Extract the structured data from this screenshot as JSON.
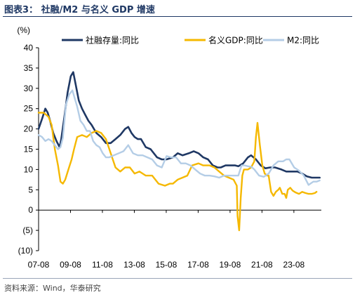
{
  "title": "图表3：  社融/M2 与名义 GDP 增速",
  "source": "资料来源：Wind，华泰研究",
  "chart_data": {
    "type": "line",
    "ylabel": "(%)",
    "ylim": [
      -10,
      40
    ],
    "yticks": [
      40,
      35,
      30,
      25,
      20,
      15,
      10,
      5,
      0,
      -5,
      -10
    ],
    "ytick_labels": [
      "40",
      "35",
      "30",
      "25",
      "20",
      "15",
      "10",
      "5",
      "0",
      "(5)",
      "(10)"
    ],
    "xlim": [
      2007.58,
      2025.3
    ],
    "xticks": [
      2007.58,
      2009.58,
      2011.58,
      2013.58,
      2015.58,
      2017.58,
      2019.58,
      2021.58,
      2023.58
    ],
    "xtick_labels": [
      "07-08",
      "09-08",
      "11-08",
      "13-08",
      "15-08",
      "17-08",
      "19-08",
      "21-08",
      "23-08"
    ],
    "legend_position": "top",
    "grid": false,
    "series": [
      {
        "name": "社融存量:同比",
        "color": "#1f3864",
        "x": [
          2007.58,
          2007.8,
          2008.0,
          2008.15,
          2008.3,
          2008.5,
          2008.7,
          2008.9,
          2009.0,
          2009.2,
          2009.4,
          2009.6,
          2009.75,
          2009.9,
          2010.1,
          2010.3,
          2010.5,
          2010.7,
          2010.9,
          2011.2,
          2011.5,
          2011.8,
          2012.1,
          2012.4,
          2012.7,
          2013.0,
          2013.2,
          2013.4,
          2013.6,
          2013.8,
          2014.0,
          2014.3,
          2014.6,
          2015.0,
          2015.3,
          2015.6,
          2016.0,
          2016.3,
          2016.6,
          2017.0,
          2017.3,
          2017.6,
          2017.9,
          2018.2,
          2018.5,
          2018.8,
          2019.0,
          2019.3,
          2019.6,
          2019.9,
          2020.1,
          2020.4,
          2020.7,
          2020.9,
          2021.2,
          2021.5,
          2021.8,
          2022.1,
          2022.4,
          2022.8,
          2023.1,
          2023.4,
          2023.8,
          2024.1,
          2024.4,
          2024.7,
          2025.0,
          2025.2
        ],
        "values": [
          20.0,
          22.5,
          25.0,
          24.0,
          22.0,
          19.0,
          17.0,
          15.5,
          17.5,
          23.0,
          29.0,
          33.0,
          34.0,
          31.0,
          27.0,
          25.0,
          23.5,
          22.0,
          21.0,
          19.0,
          18.0,
          16.5,
          16.5,
          17.5,
          18.5,
          20.0,
          20.5,
          19.0,
          18.0,
          17.5,
          17.5,
          15.5,
          15.0,
          13.0,
          12.5,
          12.5,
          13.0,
          14.0,
          13.5,
          14.0,
          14.5,
          14.0,
          13.0,
          12.5,
          11.0,
          10.5,
          10.5,
          11.0,
          11.0,
          11.0,
          10.8,
          11.5,
          13.0,
          13.5,
          12.5,
          11.0,
          10.3,
          10.5,
          10.5,
          10.0,
          9.5,
          9.5,
          9.5,
          9.0,
          8.3,
          8.0,
          8.0,
          8.0
        ]
      },
      {
        "name": "名义GDP:同比",
        "color": "#f5b800",
        "x": [
          2007.58,
          2007.9,
          2008.2,
          2008.4,
          2008.6,
          2008.8,
          2008.95,
          2009.1,
          2009.25,
          2009.45,
          2009.65,
          2009.8,
          2010.0,
          2010.3,
          2010.6,
          2010.9,
          2011.2,
          2011.5,
          2011.8,
          2012.1,
          2012.4,
          2012.7,
          2013.0,
          2013.3,
          2013.6,
          2013.9,
          2014.3,
          2014.7,
          2015.1,
          2015.5,
          2015.8,
          2016.0,
          2016.3,
          2016.6,
          2016.9,
          2017.2,
          2017.6,
          2017.9,
          2018.3,
          2018.6,
          2018.9,
          2019.2,
          2019.5,
          2019.8,
          2020.0,
          2020.05,
          2020.15,
          2020.25,
          2020.35,
          2020.45,
          2020.55,
          2020.7,
          2020.9,
          2021.1,
          2021.2,
          2021.3,
          2021.45,
          2021.6,
          2021.75,
          2021.9,
          2022.0,
          2022.15,
          2022.3,
          2022.45,
          2022.6,
          2022.7,
          2022.85,
          2023.0,
          2023.1,
          2023.2,
          2023.35,
          2023.5,
          2023.7,
          2023.9,
          2024.1,
          2024.3,
          2024.5,
          2024.7,
          2024.9,
          2025.0
        ],
        "values": [
          24.0,
          24.0,
          23.0,
          21.0,
          15.0,
          11.0,
          7.0,
          6.5,
          7.5,
          10.0,
          12.5,
          15.0,
          18.0,
          18.5,
          18.0,
          19.0,
          19.5,
          19.0,
          17.5,
          14.0,
          10.5,
          9.5,
          10.5,
          10.5,
          9.0,
          9.5,
          8.5,
          8.5,
          6.5,
          6.0,
          6.5,
          6.5,
          7.5,
          8.0,
          8.5,
          11.0,
          11.5,
          11.0,
          11.0,
          10.5,
          9.5,
          8.5,
          8.0,
          7.5,
          6.0,
          -1.5,
          -5.0,
          3.0,
          8.5,
          10.0,
          10.0,
          10.0,
          10.5,
          12.0,
          18.0,
          21.5,
          16.0,
          11.0,
          9.0,
          8.5,
          8.5,
          4.5,
          3.5,
          4.5,
          5.0,
          5.5,
          4.0,
          4.0,
          3.0,
          5.0,
          5.5,
          4.8,
          4.3,
          4.0,
          4.5,
          4.2,
          4.0,
          4.0,
          4.2,
          4.5
        ]
      },
      {
        "name": "M2:同比",
        "color": "#b4cde6",
        "x": [
          2007.58,
          2007.8,
          2008.0,
          2008.2,
          2008.4,
          2008.6,
          2008.8,
          2008.95,
          2009.1,
          2009.3,
          2009.5,
          2009.7,
          2009.85,
          2010.0,
          2010.2,
          2010.4,
          2010.6,
          2010.8,
          2011.0,
          2011.2,
          2011.4,
          2011.6,
          2011.8,
          2012.0,
          2012.3,
          2012.6,
          2012.9,
          2013.2,
          2013.5,
          2013.8,
          2014.1,
          2014.4,
          2014.7,
          2015.0,
          2015.3,
          2015.6,
          2015.9,
          2016.2,
          2016.5,
          2016.8,
          2017.1,
          2017.4,
          2017.7,
          2018.0,
          2018.3,
          2018.6,
          2018.9,
          2019.2,
          2019.5,
          2019.8,
          2020.1,
          2020.3,
          2020.5,
          2020.7,
          2020.9,
          2021.1,
          2021.4,
          2021.7,
          2022.0,
          2022.3,
          2022.6,
          2022.9,
          2023.1,
          2023.3,
          2023.6,
          2023.9,
          2024.2,
          2024.5,
          2024.8,
          2025.0,
          2025.2
        ],
        "values": [
          18.5,
          18.0,
          17.0,
          17.5,
          17.0,
          16.0,
          15.0,
          15.5,
          17.8,
          26.0,
          28.5,
          29.5,
          27.5,
          25.5,
          22.0,
          21.0,
          19.5,
          19.5,
          17.0,
          16.0,
          15.5,
          14.0,
          13.0,
          13.0,
          13.5,
          14.0,
          14.5,
          16.0,
          14.0,
          13.5,
          13.5,
          13.0,
          12.5,
          11.0,
          10.5,
          13.3,
          13.0,
          13.0,
          11.5,
          11.5,
          11.0,
          10.0,
          9.0,
          8.5,
          8.5,
          8.3,
          8.0,
          8.5,
          8.5,
          8.5,
          8.5,
          11.0,
          11.0,
          10.8,
          10.7,
          10.0,
          8.5,
          8.2,
          9.0,
          11.0,
          12.0,
          12.0,
          12.5,
          12.5,
          10.5,
          9.7,
          8.5,
          6.2,
          7.0,
          7.0,
          7.3
        ]
      }
    ]
  }
}
